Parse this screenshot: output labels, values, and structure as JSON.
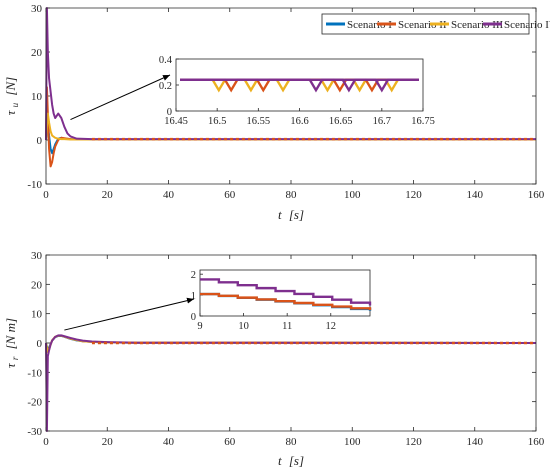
{
  "colors": {
    "scenario_1": "#0072BD",
    "scenario_2": "#D95319",
    "scenario_3": "#EDB120",
    "scenario_4": "#7E2F8E",
    "axis": "#262626",
    "arrow": "#000000"
  },
  "chart_data": [
    {
      "id": "top",
      "type": "line",
      "xlabel_main": "t",
      "xlabel_unit": "[s]",
      "ylabel_main": "τ",
      "ylabel_sub": "u",
      "ylabel_unit": "[N]",
      "xlim": [
        0,
        160
      ],
      "ylim": [
        -10,
        30
      ],
      "xticks": [
        0,
        20,
        40,
        60,
        80,
        100,
        120,
        140,
        160
      ],
      "yticks": [
        -10,
        0,
        10,
        20,
        30
      ],
      "legend": {
        "placement": "top-right",
        "entries": [
          "Scenario I",
          "Scenario II",
          "Scenario III",
          "Scenario IV"
        ]
      },
      "series": [
        {
          "name": "Scenario I",
          "color_key": "scenario_1",
          "x": [
            0,
            0.3,
            0.6,
            1,
            1.5,
            2,
            3,
            4,
            5,
            6,
            8,
            10,
            15,
            160
          ],
          "y": [
            0,
            2,
            4,
            1,
            -2,
            -3,
            -1,
            0.3,
            0.5,
            0.3,
            0.2,
            0.1,
            0.1,
            0.1
          ]
        },
        {
          "name": "Scenario II",
          "color_key": "scenario_2",
          "x": [
            0,
            0.3,
            0.6,
            1,
            1.5,
            2,
            2.5,
            3,
            4,
            5,
            6,
            8,
            10,
            15,
            160
          ],
          "y": [
            0,
            12,
            6,
            -2,
            -6,
            -5,
            -3,
            -1.5,
            0,
            0.5,
            0.4,
            0.2,
            0.1,
            0.1,
            0.1
          ]
        },
        {
          "name": "Scenario III",
          "color_key": "scenario_3",
          "x": [
            0,
            0.3,
            0.6,
            1,
            1.5,
            2,
            3,
            4,
            5,
            6,
            8,
            10,
            15,
            160
          ],
          "y": [
            0,
            3,
            6,
            4,
            2,
            1,
            0.5,
            0.3,
            0.2,
            0.2,
            0.1,
            0.1,
            0.1,
            0.1
          ]
        },
        {
          "name": "Scenario IV",
          "color_key": "scenario_4",
          "x": [
            0,
            0.3,
            0.6,
            1,
            1.5,
            2,
            2.5,
            3,
            4,
            5,
            6,
            7,
            8,
            10,
            15,
            160
          ],
          "y": [
            0,
            30,
            20,
            14,
            11,
            8,
            6,
            5,
            6,
            5,
            3,
            1.5,
            0.8,
            0.3,
            0.2,
            0.2
          ]
        }
      ],
      "inset": {
        "xlim": [
          16.45,
          16.75
        ],
        "ylim": [
          0,
          0.4
        ],
        "xticks": [
          16.45,
          16.5,
          16.55,
          16.6,
          16.65,
          16.7,
          16.75
        ],
        "yticks": [
          0,
          0.2,
          0.4
        ],
        "arrow_from": [
          8,
          1
        ],
        "arrow_to": [
          19,
          4.5
        ],
        "series": [
          {
            "color_key": "scenario_3",
            "base": 0.24,
            "low": 0.16,
            "v_centers": [
              16.502,
              16.541,
              16.58,
              16.634,
              16.673,
              16.712
            ]
          },
          {
            "color_key": "scenario_2",
            "base": 0.24,
            "low": 0.16,
            "v_centers": [
              16.517,
              16.556,
              16.649,
              16.688
            ]
          },
          {
            "color_key": "scenario_4",
            "base": 0.24,
            "low": 0.16,
            "v_centers": [
              16.62,
              16.66,
              16.7
            ]
          },
          {
            "color_key": "scenario_4",
            "base": 0.24,
            "low": 0.24,
            "v_centers": []
          }
        ]
      }
    },
    {
      "id": "bottom",
      "type": "line",
      "xlabel_main": "t",
      "xlabel_unit": "[s]",
      "ylabel_main": "τ",
      "ylabel_sub": "r",
      "ylabel_unit": "[N m]",
      "xlim": [
        0,
        160
      ],
      "ylim": [
        -30,
        30
      ],
      "xticks": [
        0,
        20,
        40,
        60,
        80,
        100,
        120,
        140,
        160
      ],
      "yticks": [
        -30,
        -20,
        -10,
        0,
        10,
        20,
        30
      ],
      "series": [
        {
          "name": "Scenario I",
          "color_key": "scenario_1",
          "x": [
            0,
            0.5,
            1,
            2,
            3,
            4,
            5,
            6,
            8,
            10,
            12,
            15,
            20,
            30,
            160
          ],
          "y": [
            0,
            -2,
            -1.5,
            0.8,
            2,
            2.4,
            2.4,
            2.1,
            1.4,
            0.9,
            0.6,
            0.4,
            0.2,
            0.1,
            0
          ]
        },
        {
          "name": "Scenario II",
          "color_key": "scenario_2",
          "x": [
            0,
            0.5,
            1,
            2,
            3,
            4,
            5,
            6,
            8,
            10,
            12,
            15,
            20,
            30,
            160
          ],
          "y": [
            0,
            -3,
            -2,
            0.9,
            2.1,
            2.5,
            2.5,
            2.2,
            1.5,
            1.0,
            0.6,
            0.4,
            0.2,
            0.1,
            0
          ]
        },
        {
          "name": "Scenario III",
          "color_key": "scenario_3",
          "x": [
            0,
            0.5,
            1,
            2,
            3,
            4,
            5,
            6,
            8,
            10,
            12,
            15,
            20,
            30,
            160
          ],
          "y": [
            0,
            -3,
            -2,
            0.9,
            2.1,
            2.5,
            2.5,
            2.2,
            1.5,
            1.0,
            0.6,
            0.4,
            0.2,
            0.1,
            0
          ]
        },
        {
          "name": "Scenario IV",
          "color_key": "scenario_4",
          "x": [
            0,
            0.3,
            0.6,
            1,
            1.5,
            2,
            3,
            4,
            5,
            6,
            8,
            10,
            12,
            15,
            20,
            30,
            160
          ],
          "y": [
            0,
            -30,
            -4.5,
            -2.5,
            -0.5,
            0.8,
            2.1,
            2.6,
            2.6,
            2.3,
            1.7,
            1.2,
            0.8,
            0.5,
            0.3,
            0.1,
            0
          ]
        }
      ],
      "inset": {
        "xlim": [
          9,
          12.9
        ],
        "ylim": [
          0,
          2.2
        ],
        "xticks": [
          9,
          10,
          11,
          12
        ],
        "yticks": [
          0,
          1,
          2
        ],
        "arrow_from": [
          6,
          1
        ],
        "arrow_to": [
          19,
          6
        ],
        "series": [
          {
            "color_key": "scenario_1",
            "x": [
              9,
              12.9
            ],
            "y": [
              1.05,
              0.25
            ],
            "steps": 9
          },
          {
            "color_key": "scenario_2",
            "x": [
              9,
              12.9
            ],
            "y": [
              1.05,
              0.28
            ],
            "steps": 9
          },
          {
            "color_key": "scenario_4",
            "x": [
              9,
              12.9
            ],
            "y": [
              1.75,
              0.5
            ],
            "steps": 9
          }
        ]
      }
    }
  ]
}
